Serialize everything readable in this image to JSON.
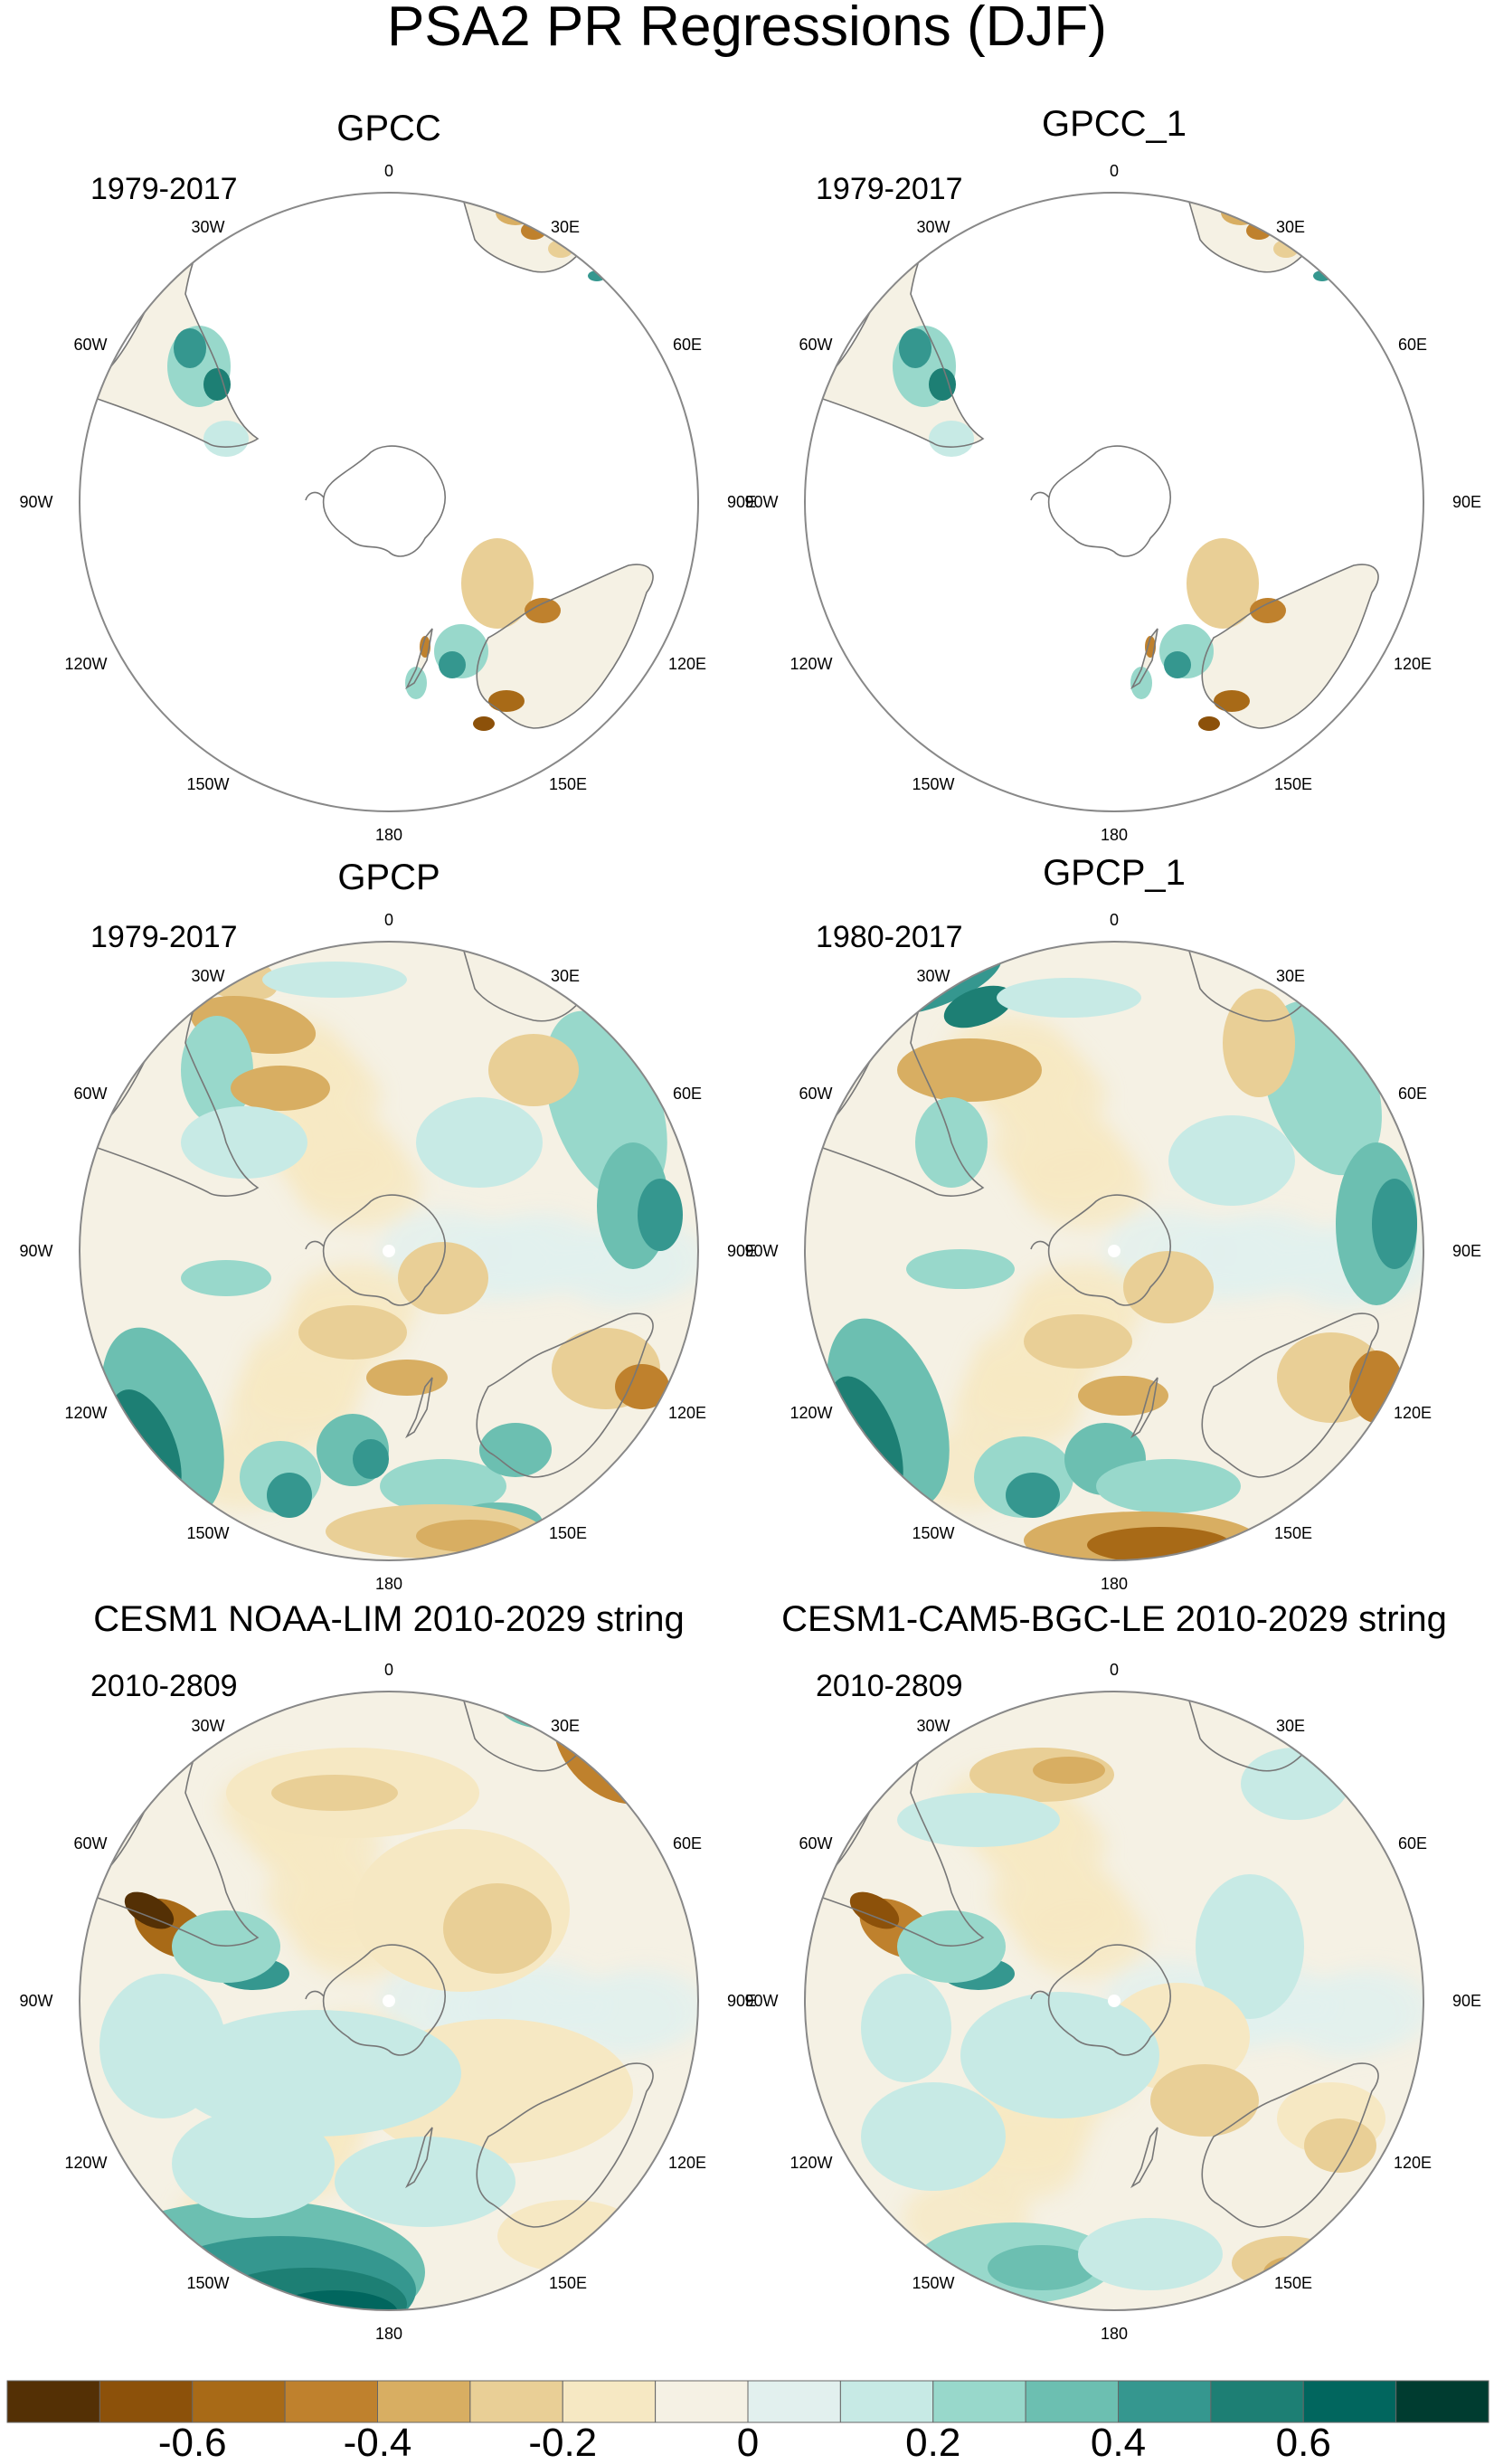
{
  "figure": {
    "title": "PSA2 PR Regressions (DJF)"
  },
  "panels": [
    {
      "id": "gpcc",
      "title": "GPCC",
      "period": "1979-2017",
      "coverage": "land-only"
    },
    {
      "id": "gpcc_1",
      "title": "GPCC_1",
      "period": "1979-2017",
      "coverage": "land-only"
    },
    {
      "id": "gpcp",
      "title": "GPCP",
      "period": "1979-2017",
      "coverage": "global"
    },
    {
      "id": "gpcp_1",
      "title": "GPCP_1",
      "period": "1980-2017",
      "coverage": "global"
    },
    {
      "id": "cesm1_lim",
      "title": "CESM1 NOAA-LIM 2010-2029 string",
      "period": "2010-2809",
      "coverage": "global"
    },
    {
      "id": "cesm1_le",
      "title": "CESM1-CAM5-BGC-LE 2010-2029 string",
      "period": "2010-2809",
      "coverage": "global"
    }
  ],
  "map_labels": {
    "top": "0",
    "bottom": "180",
    "left": "90W",
    "right": "90E",
    "upper_left": "30W",
    "upper_right": "30E",
    "mid_upper_left": "60W",
    "mid_upper_right": "60E",
    "mid_lower_left": "120W",
    "mid_lower_right": "120E",
    "lower_left": "150W",
    "lower_right": "150E"
  },
  "colorbar": {
    "colors": [
      "#543005",
      "#8c510a",
      "#a86a17",
      "#bf812d",
      "#d8ae62",
      "#e9cf96",
      "#f6e8c3",
      "#f5f1e4",
      "#e2f0ee",
      "#c7eae5",
      "#98d8cb",
      "#6cbfb1",
      "#35978f",
      "#1d7f74",
      "#01665e",
      "#003c30"
    ],
    "tick_labels": [
      "-0.6",
      "-0.4",
      "-0.2",
      "0",
      "0.2",
      "0.4",
      "0.6"
    ]
  },
  "colors": {
    "land_fill": "#ffffff",
    "coast": "#777777",
    "outline": "#888888"
  }
}
